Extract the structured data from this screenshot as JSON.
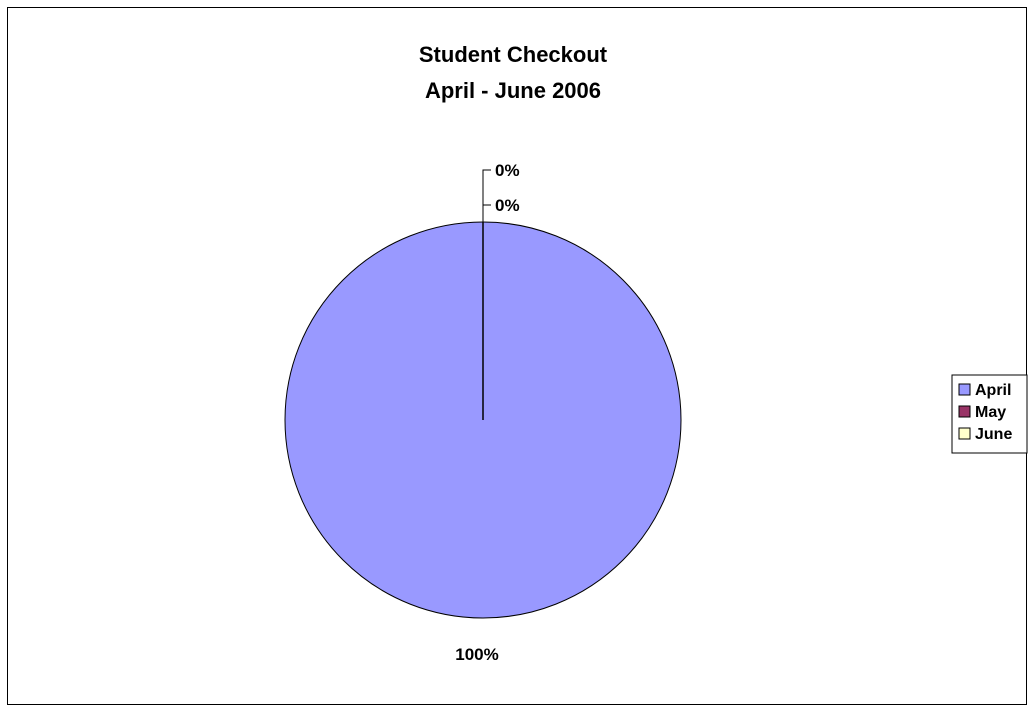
{
  "chart_data": {
    "type": "pie",
    "title": "Student Checkout",
    "subtitle": "April - June 2006",
    "categories": [
      "April",
      "May",
      "June"
    ],
    "values": [
      100,
      0,
      0
    ],
    "data_labels": [
      "100%",
      "0%",
      "0%"
    ],
    "colors": [
      "#9999ff",
      "#993366",
      "#ffffcc"
    ],
    "legend_position": "right"
  }
}
